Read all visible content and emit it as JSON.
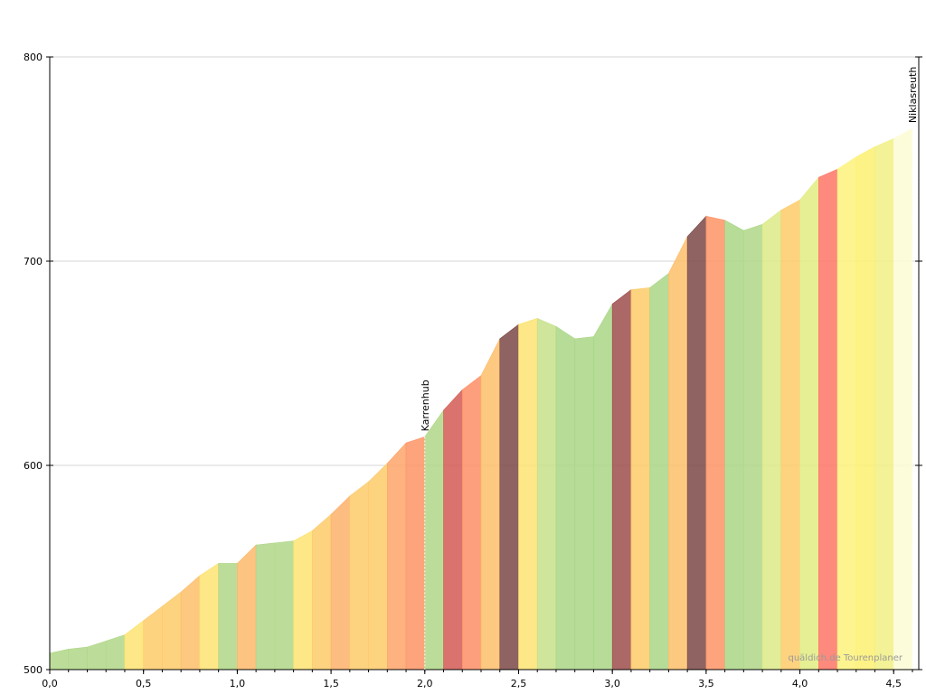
{
  "chart_data": {
    "type": "area",
    "title": "",
    "xlabel": "",
    "ylabel": "",
    "xlim": [
      0,
      4.6
    ],
    "ylim": [
      500,
      800
    ],
    "x_ticks": [
      {
        "value": 0,
        "label": "0,0"
      },
      {
        "value": 0.5,
        "label": "0,5"
      },
      {
        "value": 1.0,
        "label": "1,0"
      },
      {
        "value": 1.5,
        "label": "1,5"
      },
      {
        "value": 2.0,
        "label": "2,0"
      },
      {
        "value": 2.5,
        "label": "2,5"
      },
      {
        "value": 3.0,
        "label": "3,0"
      },
      {
        "value": 3.5,
        "label": "3,5"
      },
      {
        "value": 4.0,
        "label": "4,0"
      },
      {
        "value": 4.5,
        "label": "4,5"
      }
    ],
    "y_ticks": [
      {
        "value": 500,
        "label": "500"
      },
      {
        "value": 600,
        "label": "600"
      },
      {
        "value": 700,
        "label": "700"
      },
      {
        "value": 800,
        "label": "800"
      }
    ],
    "grid": true,
    "x": [
      0.0,
      0.1,
      0.2,
      0.3,
      0.4,
      0.5,
      0.6,
      0.7,
      0.8,
      0.9,
      1.0,
      1.1,
      1.2,
      1.3,
      1.4,
      1.5,
      1.6,
      1.7,
      1.8,
      1.9,
      2.0,
      2.1,
      2.2,
      2.3,
      2.4,
      2.5,
      2.6,
      2.7,
      2.8,
      2.9,
      3.0,
      3.1,
      3.2,
      3.3,
      3.4,
      3.5,
      3.6,
      3.7,
      3.8,
      3.9,
      4.0,
      4.1,
      4.2,
      4.3,
      4.4,
      4.5,
      4.6
    ],
    "elevation": [
      508,
      510,
      511,
      514,
      517,
      524,
      531,
      538,
      546,
      552,
      552,
      561,
      562,
      563,
      568,
      576,
      585,
      592,
      601,
      611,
      614,
      627,
      637,
      644,
      662,
      669,
      672,
      668,
      662,
      663,
      679,
      686,
      687,
      694,
      712,
      722,
      720,
      715,
      718,
      725,
      730,
      741,
      745,
      751,
      756,
      760,
      765
    ],
    "segment_colors": [
      "#b0d787",
      "#b0d787",
      "#b0d787",
      "#b0d787",
      "#fde371",
      "#fdcb6a",
      "#fdcb6a",
      "#fdbe6a",
      "#fde371",
      "#b0d787",
      "#fdb96a",
      "#b0d787",
      "#b0d787",
      "#fde371",
      "#fdcb6a",
      "#fdb06a",
      "#fdcb6a",
      "#fdcb6a",
      "#fda56a",
      "#fd9465",
      "#b0d787",
      "#d35b55",
      "#fd8e66",
      "#fdbe6a",
      "#7a4846",
      "#fde371",
      "#c7e18a",
      "#a9d686",
      "#a9d686",
      "#a9d686",
      "#9e4d4b",
      "#fdcb6a",
      "#a9d686",
      "#fdbe6a",
      "#7a4846",
      "#fd9465",
      "#a9d686",
      "#b0d787",
      "#dcea86",
      "#fdcb6a",
      "#e2ec80",
      "#fd7565",
      "#fdf27b",
      "#fdf071",
      "#f1f084",
      "#fbfbd5",
      "#edf27b"
    ],
    "waypoints": [
      {
        "x": 2.0,
        "name": "Karrenhub"
      },
      {
        "x": 4.6,
        "name": "Niklasreuth"
      }
    ],
    "credit": "quäldich.de Tourenplaner",
    "fill_opacity": 0.85
  }
}
